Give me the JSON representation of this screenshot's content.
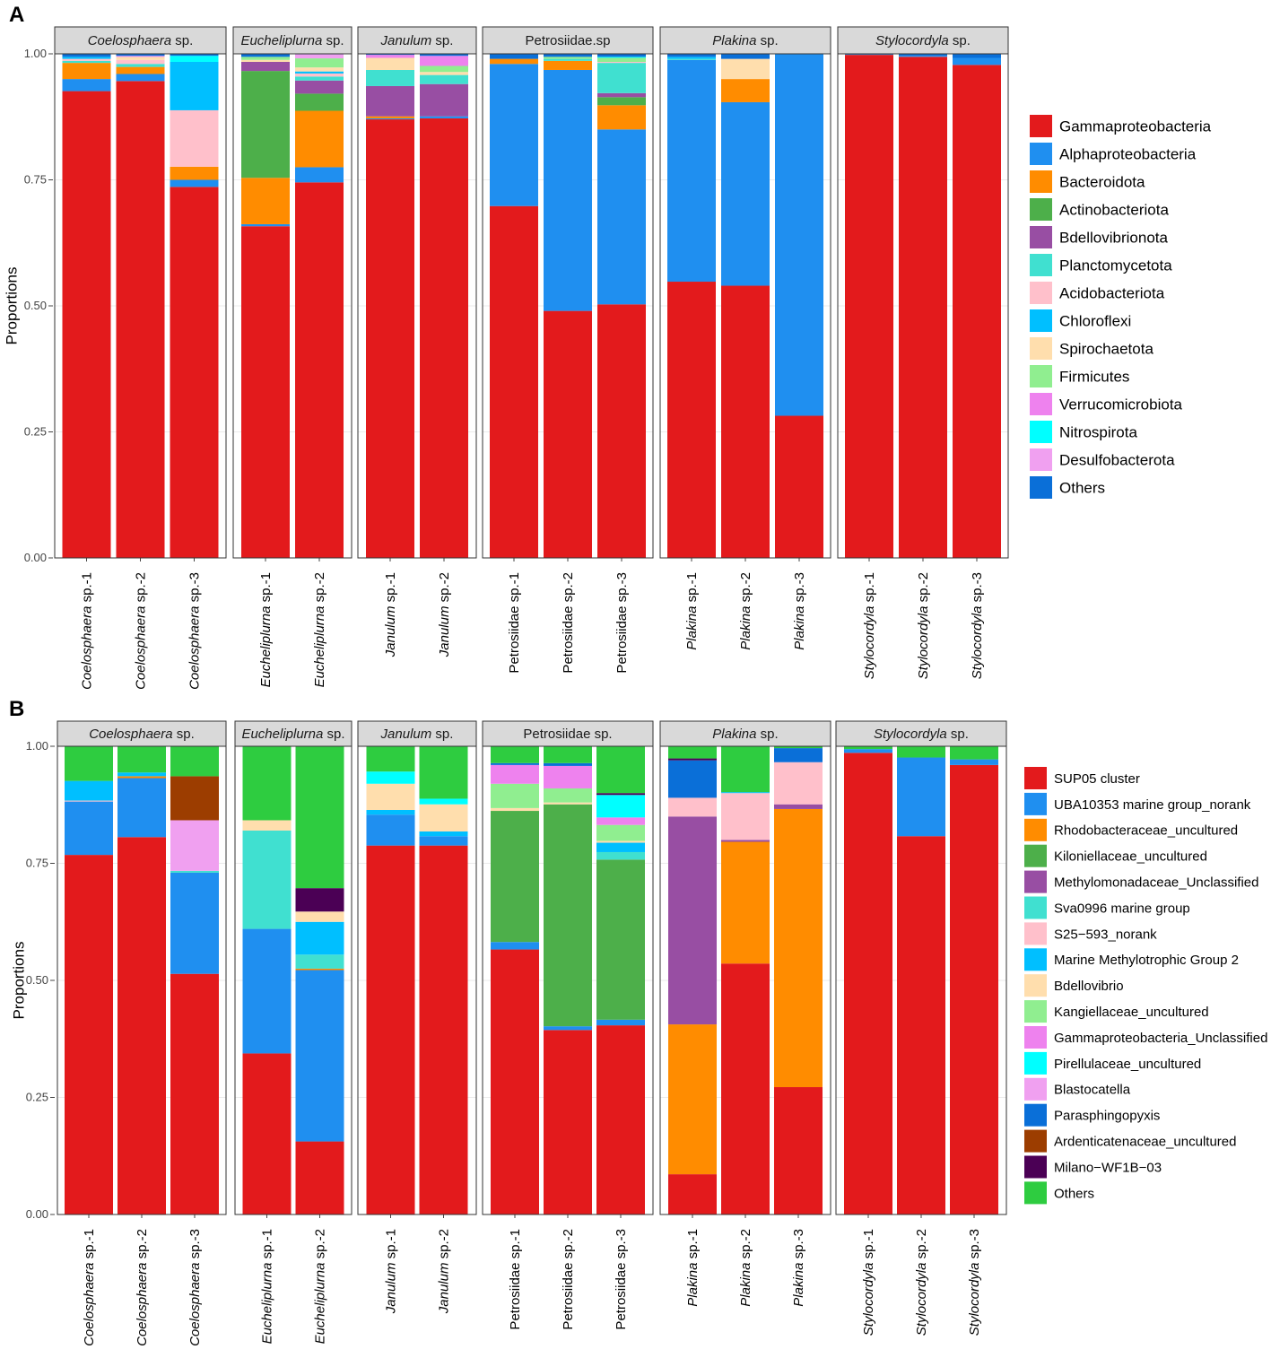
{
  "chart_data": [
    {
      "panel": "A",
      "type": "stacked-bar-facet",
      "ylabel": "Proportions",
      "ylim": [
        0,
        1
      ],
      "yticks": [
        "0.00",
        "0.25",
        "0.50",
        "0.75",
        "1.00"
      ],
      "categories": [
        "Gammaproteobacteria",
        "Alphaproteobacteria",
        "Bacteroidota",
        "Actinobacteriota",
        "Bdellovibrionota",
        "Planctomycetota",
        "Acidobacteriota",
        "Chloroflexi",
        "Spirochaetota",
        "Firmicutes",
        "Verrucomicrobiota",
        "Nitrospirota",
        "Desulfobacterota",
        "Others"
      ],
      "colors": [
        "#e31a1c",
        "#1f8ff0",
        "#ff8c00",
        "#4daf4a",
        "#984ea3",
        "#40e0d0",
        "#ffc0cb",
        "#00bfff",
        "#ffdead",
        "#90ee90",
        "#ee82ee",
        "#00ffff",
        "#f0a0f0",
        "#0a6fd8"
      ],
      "legend_position": "right",
      "facets": [
        {
          "label": "Coelosphaera",
          "suffix": " sp.",
          "italic": true,
          "samples": [
            {
              "genus": "Coelosphaera",
              "sp": "sp.-1",
              "values": [
                0.926,
                0.024,
                0.032,
                0,
                0,
                0.004,
                0.004,
                0.004,
                0,
                0,
                0,
                0,
                0,
                0.006
              ]
            },
            {
              "genus": "Coelosphaera",
              "sp": "sp.-2",
              "values": [
                0.946,
                0.014,
                0.014,
                0,
                0,
                0.006,
                0.008,
                0,
                0.006,
                0,
                0.002,
                0,
                0,
                0.004
              ]
            },
            {
              "genus": "Coelosphaera",
              "sp": "sp.-3",
              "values": [
                0.736,
                0.014,
                0.026,
                0,
                0,
                0,
                0.112,
                0.096,
                0,
                0,
                0,
                0.012,
                0,
                0.004
              ]
            }
          ]
        },
        {
          "label": "Eucheliplurna",
          "suffix": " sp.",
          "italic": true,
          "samples": [
            {
              "genus": "Eucheliplurna",
              "sp": "sp.-1",
              "values": [
                0.658,
                0.004,
                0.092,
                0.212,
                0.018,
                0,
                0,
                0,
                0.004,
                0.006,
                0,
                0,
                0,
                0.006
              ]
            },
            {
              "genus": "Eucheliplurna",
              "sp": "sp.-2",
              "values": [
                0.745,
                0.03,
                0.112,
                0.034,
                0.026,
                0.008,
                0.006,
                0.004,
                0.008,
                0.018,
                0,
                0,
                0.008,
                0.001
              ]
            }
          ]
        },
        {
          "label": "Janulum",
          "suffix": " sp.",
          "italic": true,
          "samples": [
            {
              "genus": "Janulum",
              "sp": "sp.-1",
              "values": [
                0.87,
                0.002,
                0.004,
                0,
                0.06,
                0.032,
                0,
                0,
                0.024,
                0,
                0.006,
                0,
                0,
                0.002
              ]
            },
            {
              "genus": "Janulum",
              "sp": "sp.-2",
              "values": [
                0.872,
                0.004,
                0,
                0,
                0.064,
                0.018,
                0,
                0,
                0.006,
                0.012,
                0.02,
                0,
                0,
                0.004
              ]
            }
          ]
        },
        {
          "label": "Petrosiidae.sp",
          "suffix": "",
          "italic": false,
          "samples": [
            {
              "genus": "Petrosiidae",
              "sp": "sp.-1",
              "values": [
                0.698,
                0.282,
                0.01,
                0,
                0,
                0,
                0,
                0,
                0,
                0,
                0,
                0,
                0,
                0.01
              ]
            },
            {
              "genus": "Petrosiidae",
              "sp": "sp.-2",
              "values": [
                0.49,
                0.478,
                0.018,
                0,
                0,
                0.004,
                0,
                0,
                0,
                0.004,
                0,
                0,
                0,
                0.006
              ]
            },
            {
              "genus": "Petrosiidae",
              "sp": "sp.-3",
              "values": [
                0.503,
                0.347,
                0.048,
                0.016,
                0.008,
                0.06,
                0.002,
                0,
                0,
                0.008,
                0,
                0.002,
                0,
                0.006
              ]
            }
          ]
        },
        {
          "label": "Plakina",
          "suffix": " sp.",
          "italic": true,
          "samples": [
            {
              "genus": "Plakina",
              "sp": "sp.-1",
              "values": [
                0.548,
                0.44,
                0,
                0,
                0,
                0.002,
                0,
                0.004,
                0,
                0,
                0,
                0,
                0,
                0.006
              ]
            },
            {
              "genus": "Plakina",
              "sp": "sp.-2",
              "values": [
                0.54,
                0.364,
                0.046,
                0,
                0,
                0,
                0,
                0,
                0.04,
                0,
                0,
                0,
                0,
                0.01
              ]
            },
            {
              "genus": "Plakina",
              "sp": "sp.-3",
              "values": [
                0.282,
                0.718,
                0,
                0,
                0,
                0,
                0,
                0,
                0,
                0,
                0,
                0,
                0,
                0
              ]
            }
          ]
        },
        {
          "label": "Stylocordyla",
          "suffix": " sp.",
          "italic": true,
          "samples": [
            {
              "genus": "Stylocordyla",
              "sp": "sp.-1",
              "values": [
                0.998,
                0.002,
                0,
                0,
                0,
                0,
                0,
                0,
                0,
                0,
                0,
                0,
                0,
                0
              ]
            },
            {
              "genus": "Stylocordyla",
              "sp": "sp.-2",
              "values": [
                0.994,
                0.002,
                0,
                0,
                0,
                0,
                0,
                0,
                0,
                0,
                0,
                0,
                0,
                0.004
              ]
            },
            {
              "genus": "Stylocordyla",
              "sp": "sp.-3",
              "values": [
                0.978,
                0.014,
                0,
                0,
                0,
                0,
                0,
                0,
                0,
                0,
                0,
                0,
                0,
                0.008
              ]
            }
          ]
        }
      ]
    },
    {
      "panel": "B",
      "type": "stacked-bar-facet",
      "ylabel": "Proportions",
      "ylim": [
        0,
        1
      ],
      "yticks": [
        "0.00",
        "0.25",
        "0.50",
        "0.75",
        "1.00"
      ],
      "categories": [
        "SUP05 cluster",
        "UBA10353 marine group_norank",
        "Rhodobacteraceae_uncultured",
        "Kiloniellaceae_uncultured",
        "Methylomonadaceae_Unclassified",
        "Sva0996 marine group",
        "S25−593_norank",
        "Marine Methylotrophic Group 2",
        "Bdellovibrio",
        "Kangiellaceae_uncultured",
        "Gammaproteobacteria_Unclassified",
        "Pirellulaceae_uncultured",
        "Blastocatella",
        "Parasphingopyxis",
        "Ardenticatenaceae_uncultured",
        "Milano−WF1B−03",
        "Others"
      ],
      "colors": [
        "#e31a1c",
        "#1f8ff0",
        "#ff8c00",
        "#4daf4a",
        "#984ea3",
        "#40e0d0",
        "#ffc0cb",
        "#00bfff",
        "#ffdead",
        "#90ee90",
        "#ee82ee",
        "#00ffff",
        "#f0a0f0",
        "#0a6fd8",
        "#9c3d00",
        "#4b0055",
        "#2ecc40"
      ],
      "legend_position": "right",
      "facets": [
        {
          "label": "Coelosphaera",
          "suffix": " sp.",
          "italic": true,
          "samples": [
            {
              "genus": "Coelosphaera",
              "sp": "sp.-1",
              "values": [
                0.768,
                0.114,
                0,
                0,
                0,
                0,
                0.002,
                0.042,
                0,
                0,
                0,
                0,
                0,
                0,
                0,
                0,
                0.074
              ]
            },
            {
              "genus": "Coelosphaera",
              "sp": "sp.-2",
              "values": [
                0.806,
                0.126,
                0.004,
                0,
                0,
                0,
                0,
                0.008,
                0,
                0,
                0,
                0,
                0,
                0,
                0,
                0,
                0.056
              ]
            },
            {
              "genus": "Coelosphaera",
              "sp": "sp.-3",
              "values": [
                0.514,
                0.216,
                0,
                0,
                0,
                0.004,
                0,
                0,
                0,
                0,
                0,
                0,
                0.108,
                0,
                0.094,
                0,
                0.064
              ]
            }
          ]
        },
        {
          "label": "Eucheliplurna",
          "suffix": " sp.",
          "italic": true,
          "samples": [
            {
              "genus": "Eucheliplurna",
              "sp": "sp.-1",
              "values": [
                0.344,
                0.266,
                0,
                0,
                0,
                0.21,
                0,
                0,
                0.022,
                0,
                0,
                0,
                0,
                0,
                0,
                0,
                0.158
              ]
            },
            {
              "genus": "Eucheliplurna",
              "sp": "sp.-2",
              "values": [
                0.156,
                0.366,
                0.003,
                0,
                0,
                0.03,
                0,
                0.07,
                0.022,
                0,
                0,
                0,
                0,
                0,
                0,
                0.05,
                0.303
              ]
            }
          ]
        },
        {
          "label": "Janulum",
          "suffix": " sp.",
          "italic": true,
          "samples": [
            {
              "genus": "Janulum",
              "sp": "sp.-1",
              "values": [
                0.788,
                0.066,
                0,
                0,
                0,
                0,
                0,
                0.01,
                0.056,
                0,
                0,
                0.026,
                0,
                0,
                0,
                0,
                0.054
              ]
            },
            {
              "genus": "Janulum",
              "sp": "sp.-2",
              "values": [
                0.788,
                0.02,
                0,
                0,
                0,
                0,
                0,
                0.01,
                0.058,
                0,
                0,
                0.012,
                0,
                0,
                0,
                0,
                0.112
              ]
            }
          ]
        },
        {
          "label": "Petrosiidae",
          "suffix": " sp.",
          "italic": false,
          "samples": [
            {
              "genus": "Petrosiidae",
              "sp": "sp.-1",
              "values": [
                0.566,
                0.016,
                0,
                0.28,
                0,
                0,
                0,
                0,
                0.006,
                0.052,
                0.04,
                0,
                0,
                0.004,
                0,
                0,
                0.036
              ]
            },
            {
              "genus": "Petrosiidae",
              "sp": "sp.-2",
              "values": [
                0.394,
                0.008,
                0,
                0.474,
                0,
                0,
                0,
                0,
                0.004,
                0.03,
                0.048,
                0,
                0,
                0.006,
                0,
                0,
                0.036
              ]
            },
            {
              "genus": "Petrosiidae",
              "sp": "sp.-3",
              "values": [
                0.404,
                0.012,
                0,
                0.342,
                0,
                0.016,
                0,
                0.02,
                0.004,
                0.034,
                0.016,
                0.048,
                0,
                0,
                0,
                0.004,
                0.1
              ]
            }
          ]
        },
        {
          "label": "Plakina",
          "suffix": " sp.",
          "italic": true,
          "samples": [
            {
              "genus": "Plakina",
              "sp": "sp.-1",
              "values": [
                0.086,
                0,
                0.32,
                0,
                0.444,
                0,
                0.04,
                0,
                0,
                0,
                0,
                0,
                0,
                0.08,
                0,
                0.004,
                0.026
              ]
            },
            {
              "genus": "Plakina",
              "sp": "sp.-2",
              "values": [
                0.536,
                0,
                0.26,
                0,
                0.004,
                0,
                0.1,
                0.002,
                0,
                0,
                0,
                0,
                0,
                0,
                0,
                0,
                0.098
              ]
            },
            {
              "genus": "Plakina",
              "sp": "sp.-3",
              "values": [
                0.272,
                0,
                0.594,
                0,
                0.01,
                0,
                0.09,
                0,
                0,
                0,
                0,
                0,
                0,
                0.03,
                0,
                0,
                0.004
              ]
            }
          ]
        },
        {
          "label": "Stylocordyla",
          "suffix": " sp.",
          "italic": true,
          "samples": [
            {
              "genus": "Stylocordyla",
              "sp": "sp.-1",
              "values": [
                0.986,
                0.008,
                0,
                0,
                0,
                0,
                0,
                0,
                0,
                0,
                0,
                0,
                0,
                0,
                0,
                0,
                0.006
              ]
            },
            {
              "genus": "Stylocordyla",
              "sp": "sp.-2",
              "values": [
                0.808,
                0.168,
                0,
                0,
                0,
                0,
                0,
                0,
                0,
                0,
                0,
                0,
                0,
                0,
                0,
                0,
                0.024
              ]
            },
            {
              "genus": "Stylocordyla",
              "sp": "sp.-3",
              "values": [
                0.96,
                0.012,
                0,
                0,
                0,
                0,
                0,
                0,
                0,
                0,
                0,
                0,
                0,
                0,
                0,
                0,
                0.028
              ]
            }
          ]
        }
      ]
    }
  ]
}
